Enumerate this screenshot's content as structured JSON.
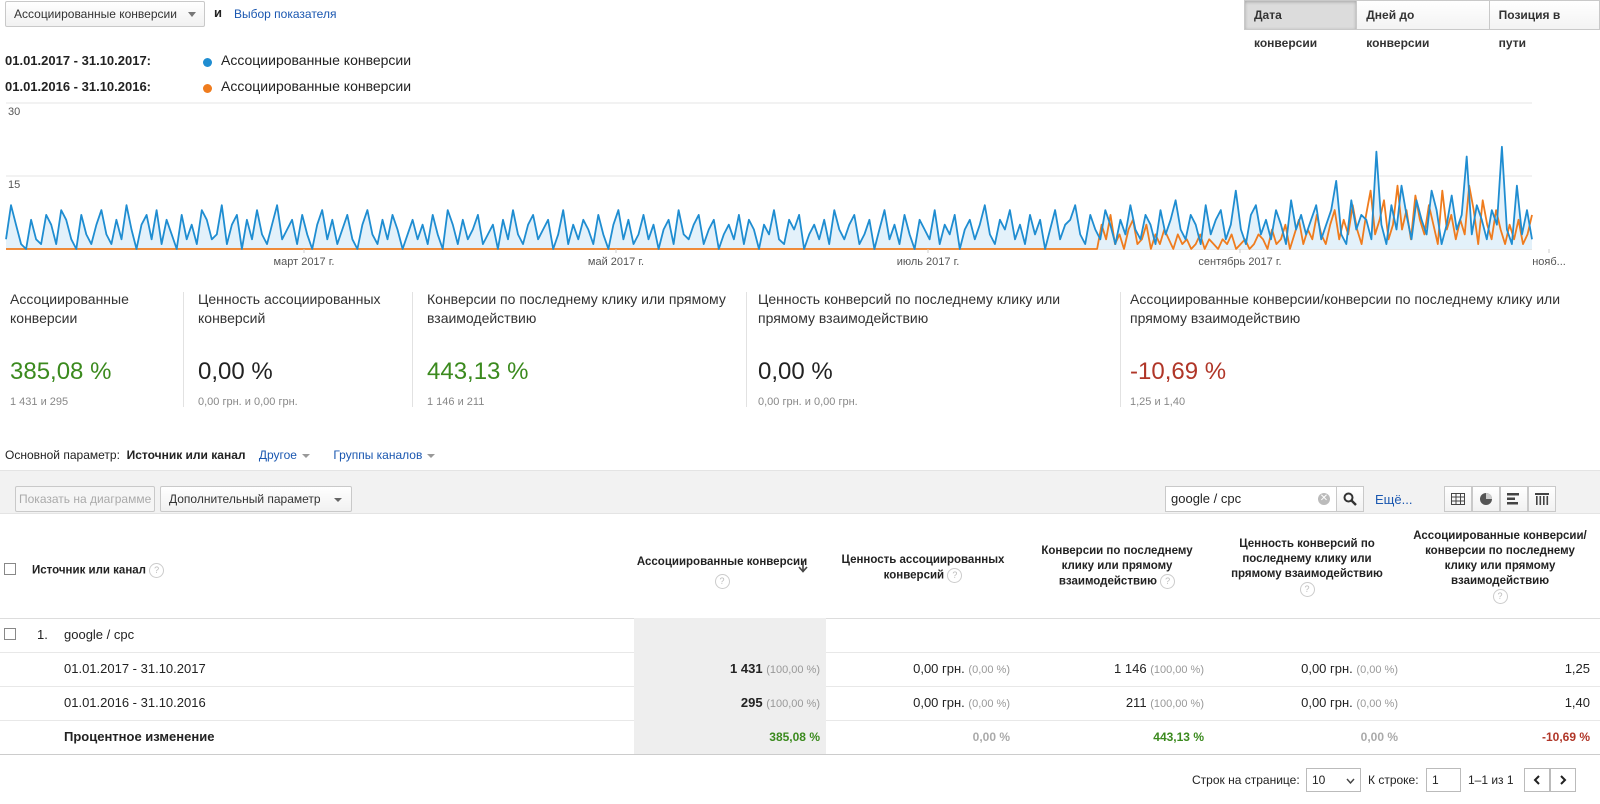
{
  "header": {
    "metric_select": "Ассоциированные конверсии",
    "and_label": "и",
    "pick_metric": "Выбор показателя",
    "segments": [
      "Дата конверсии",
      "Дней до конверсии",
      "Позиция в пути"
    ]
  },
  "legend": [
    {
      "range": "01.01.2017 - 31.10.2017:",
      "name": "Ассоциированные конверсии",
      "color": "#1f8dd1"
    },
    {
      "range": "01.01.2016 - 31.10.2016:",
      "name": "Ассоциированные конверсии",
      "color": "#ef7c1e"
    }
  ],
  "chart_data": {
    "type": "line",
    "y_ticks": [
      "30",
      "15"
    ],
    "ylim": [
      0,
      30
    ],
    "x_labels": [
      "март 2017 г.",
      "май 2017 г.",
      "июль 2017 г.",
      "сентябрь 2017 г.",
      "нояб..."
    ],
    "grid": true,
    "series": [
      {
        "name": "Ассоциированные конверсии",
        "color": "#1f8dd1",
        "values": [
          2,
          9,
          5,
          1,
          0,
          6,
          2,
          1,
          7,
          5,
          1,
          8,
          6,
          2,
          0,
          7,
          3,
          1,
          5,
          8,
          3,
          1,
          6,
          2,
          9,
          4,
          0,
          5,
          7,
          2,
          8,
          1,
          6,
          3,
          0,
          7,
          2,
          5,
          1,
          8,
          6,
          2,
          3,
          9,
          1,
          5,
          7,
          0,
          6,
          2,
          8,
          3,
          1,
          5,
          9,
          2,
          4,
          6,
          1,
          7,
          3,
          0,
          5,
          8,
          2,
          6,
          1,
          4,
          7,
          2,
          0,
          5,
          8,
          3,
          1,
          6,
          2,
          7,
          4,
          0,
          3,
          6,
          2,
          5,
          1,
          7,
          3,
          0,
          8,
          5,
          1,
          6,
          2,
          4,
          7,
          1,
          3,
          5,
          0,
          6,
          2,
          8,
          3,
          1,
          5,
          7,
          2,
          4,
          6,
          0,
          3,
          8,
          1,
          5,
          2,
          6,
          4,
          1,
          7,
          3,
          0,
          5,
          8,
          2,
          6,
          1,
          3,
          7,
          2,
          5,
          0,
          4,
          6,
          1,
          8,
          3,
          2,
          5,
          7,
          1,
          4,
          6,
          0,
          3,
          5,
          2,
          7,
          1,
          6,
          4,
          0,
          5,
          3,
          8,
          2,
          1,
          6,
          4,
          7,
          0,
          3,
          5,
          2,
          6,
          1,
          8,
          4,
          2,
          5,
          7,
          1,
          3,
          6,
          0,
          4,
          8,
          2,
          5,
          1,
          7,
          3,
          0,
          6,
          4,
          2,
          8,
          1,
          5,
          3,
          7,
          0,
          4,
          6,
          2,
          5,
          9,
          3,
          1,
          6,
          4,
          8,
          2,
          5,
          1,
          7,
          3,
          6,
          0,
          4,
          8,
          2,
          5,
          6,
          9,
          3,
          1,
          7,
          4,
          2,
          8,
          5,
          1,
          6,
          3,
          9,
          4,
          2,
          7,
          5,
          1,
          8,
          3,
          6,
          10,
          4,
          2,
          7,
          5,
          1,
          9,
          3,
          6,
          8,
          2,
          5,
          12,
          4,
          1,
          7,
          9,
          3,
          6,
          2,
          8,
          5,
          1,
          10,
          4,
          7,
          3,
          6,
          9,
          2,
          5,
          8,
          14,
          3,
          1,
          10,
          4,
          7,
          6,
          2,
          20,
          5,
          1,
          9,
          4,
          13,
          7,
          2,
          10,
          6,
          3,
          12,
          8,
          1,
          5,
          11,
          4,
          7,
          19,
          3,
          9,
          6,
          2,
          8,
          5,
          21,
          4,
          1,
          13,
          3,
          8,
          2
        ],
        "note": "approximate daily values"
      },
      {
        "name": "Ассоциированные конверсии",
        "color": "#ef7c1e",
        "values_start_fraction": 0.715,
        "values": [
          0,
          5,
          2,
          7,
          1,
          3,
          0,
          4,
          6,
          1,
          2,
          5,
          0,
          3,
          1,
          4,
          2,
          0,
          3,
          1,
          2,
          0,
          1,
          3,
          0,
          2,
          1,
          0,
          2,
          1,
          3,
          0,
          1,
          2,
          0,
          1,
          3,
          2,
          0,
          4,
          1,
          2,
          5,
          0,
          3,
          6,
          1,
          4,
          2,
          7,
          3,
          1,
          5,
          8,
          2,
          6,
          3,
          9,
          4,
          1,
          7,
          12,
          3,
          6,
          10,
          2,
          5,
          13,
          4,
          8,
          2,
          11,
          6,
          3,
          9,
          5,
          1,
          12,
          4,
          7,
          2,
          6,
          3,
          13,
          8,
          1,
          10,
          5,
          2,
          8,
          4,
          1,
          5,
          2,
          6,
          1,
          3,
          7
        ]
      }
    ]
  },
  "scorecards": [
    {
      "title": "Ассоциированные конверсии",
      "value": "385,08 %",
      "sub": "1 431 и 295",
      "color": "#3b8a1e"
    },
    {
      "title": "Ценность ассоциированных конверсий",
      "value": "0,00 %",
      "sub": "0,00 грн. и 0,00 грн.",
      "color": "#222222"
    },
    {
      "title": "Конверсии по последнему клику или прямому взаимодействию",
      "value": "443,13 %",
      "sub": "1 146 и 211",
      "color": "#3b8a1e"
    },
    {
      "title": "Ценность конверсий по последнему клику или прямому взаимодействию",
      "value": "0,00 %",
      "sub": "0,00 грн. и 0,00 грн.",
      "color": "#222222"
    },
    {
      "title": "Ассоциированные конверсии/конверсии по последнему клику или прямому взаимодействию",
      "value": "-10,69 %",
      "sub": "1,25 и 1,40",
      "color": "#b03628"
    }
  ],
  "dimension": {
    "label": "Основной параметр:",
    "current": "Источник или канал",
    "other": "Другое",
    "groups": "Группы каналов"
  },
  "toolbar": {
    "show_on_chart": "Показать на диаграмме",
    "secondary_param": "Дополнительный параметр",
    "search_value": "google / cpc",
    "more": "Ещё..."
  },
  "table": {
    "columns": [
      "Источник или канал",
      "Ассоциированные конверсии",
      "Ценность ассоциированных конверсий",
      "Конверсии по последнему клику или прямому взаимодействию",
      "Ценность конверсий по последнему клику или прямому взаимодействию",
      "Ассоциированные конверсии/конверсии по последнему клику или прямому взаимодействию"
    ],
    "group_index": "1.",
    "group_name": "google / cpc",
    "rows": [
      {
        "label": "01.01.2017 - 31.10.2017",
        "c1": "1 431",
        "c1p": "(100,00 %)",
        "c2": "0,00 грн.",
        "c2p": "(0,00 %)",
        "c3": "1 146",
        "c3p": "(100,00 %)",
        "c4": "0,00 грн.",
        "c4p": "(0,00 %)",
        "c5": "1,25"
      },
      {
        "label": "01.01.2016 - 31.10.2016",
        "c1": "295",
        "c1p": "(100,00 %)",
        "c2": "0,00 грн.",
        "c2p": "(0,00 %)",
        "c3": "211",
        "c3p": "(100,00 %)",
        "c4": "0,00 грн.",
        "c4p": "(0,00 %)",
        "c5": "1,40"
      }
    ],
    "change": {
      "label": "Процентное изменение",
      "c1": "385,08 %",
      "c2": "0,00 %",
      "c3": "443,13 %",
      "c4": "0,00 %",
      "c5": "-10,69 %"
    }
  },
  "pager": {
    "rows_per_page_label": "Строк на странице:",
    "rows_per_page": "10",
    "goto_label": "К строке:",
    "goto_value": "1",
    "range": "1–1 из 1"
  }
}
